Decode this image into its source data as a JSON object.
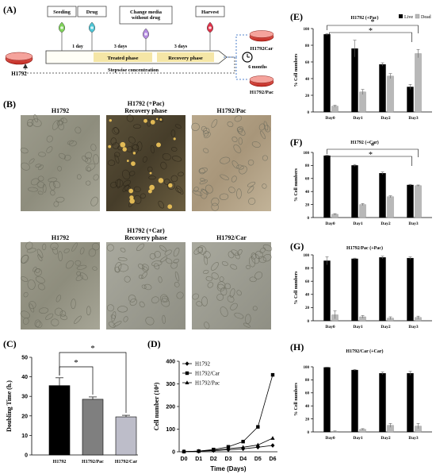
{
  "panel_a": {
    "letter": "(A)",
    "cell_line": "H1792",
    "steps": [
      {
        "label": "Seeding",
        "color": "#7fd35a"
      },
      {
        "label": "Drug",
        "color": "#4ec6d6"
      },
      {
        "label": "Change media\nwithout drug",
        "color": "#b48be0"
      },
      {
        "label": "Harvest",
        "color": "#e0334a"
      }
    ],
    "interval_1": "1 day",
    "interval_2": "3 days",
    "interval_3": "3 days",
    "phase_1": "Treated phase",
    "phase_2": "Recovery phase",
    "stepwise": "Stepwise concentration",
    "duration": "6 months",
    "result_1": "H1792Car",
    "result_2": "H1792/Pac"
  },
  "panel_b": {
    "letter": "(B)",
    "row1": [
      "H1792",
      "H1792 (+Pac)\nRecovery phase",
      "H1792/Pac"
    ],
    "row2": [
      "H1792",
      "H1792 (+Car)\nRecovery phase",
      "H1792/Car"
    ]
  },
  "chart_data": [
    {
      "id": "C",
      "letter": "(C)",
      "type": "bar",
      "categories": [
        "H1792",
        "H1792/Pac",
        "H1792/Car"
      ],
      "values": [
        35.5,
        28.5,
        19.5
      ],
      "errors": [
        4,
        1.2,
        0.8
      ],
      "colors": [
        "#000000",
        "#7f7f7f",
        "#bdbdc9"
      ],
      "ylabel": "Doubling Time (h.)",
      "ylim": [
        0,
        50
      ],
      "yticks": [
        0,
        10,
        20,
        30,
        40,
        50
      ],
      "significance": [
        {
          "pair": [
            0,
            1
          ],
          "label": "*"
        },
        {
          "pair": [
            0,
            2
          ],
          "label": "*"
        }
      ]
    },
    {
      "id": "D",
      "letter": "(D)",
      "type": "line",
      "x": [
        "D0",
        "D1",
        "D2",
        "D3",
        "D4",
        "D5",
        "D6"
      ],
      "series": [
        {
          "name": "H1792",
          "marker": "diamond",
          "values": [
            1,
            2,
            5,
            9,
            13,
            20,
            28
          ]
        },
        {
          "name": "H1792/Car",
          "marker": "square",
          "values": [
            1,
            3,
            10,
            22,
            45,
            110,
            340
          ]
        },
        {
          "name": "H1792/Pac",
          "marker": "triangle",
          "values": [
            1,
            3,
            7,
            14,
            20,
            30,
            60
          ]
        }
      ],
      "ylabel": "Cell number (10⁴)",
      "xlabel": "Time (Days)",
      "ylim": [
        0,
        400
      ],
      "yticks": [
        0,
        100,
        200,
        300,
        400
      ]
    },
    {
      "id": "E",
      "letter": "(E)",
      "type": "bar",
      "title": "H1792 (+Pac)",
      "legend": [
        "Live",
        "Dead"
      ],
      "categories": [
        "Day0",
        "Day1",
        "Day2",
        "Day3"
      ],
      "series": [
        {
          "name": "Live",
          "values": [
            93,
            76,
            57,
            30
          ],
          "errors": [
            1,
            10,
            2,
            3
          ]
        },
        {
          "name": "Dead",
          "values": [
            7,
            24,
            43,
            70
          ],
          "errors": [
            1,
            3,
            3,
            5
          ]
        }
      ],
      "ylabel": "% Cell numbers",
      "ylim": [
        0,
        100
      ],
      "yticks": [
        0,
        20,
        40,
        60,
        80,
        100
      ],
      "significance": [
        {
          "pair": [
            0,
            3
          ],
          "label": "*"
        },
        {
          "pair": [
            0,
            3
          ],
          "label": "*"
        }
      ]
    },
    {
      "id": "F",
      "letter": "(F)",
      "type": "bar",
      "title": "H1792 (+Car)",
      "categories": [
        "Day0",
        "Day1",
        "Day2",
        "Day3"
      ],
      "series": [
        {
          "name": "Live",
          "values": [
            95,
            80,
            68,
            50
          ],
          "errors": [
            1,
            1.5,
            2,
            1
          ]
        },
        {
          "name": "Dead",
          "values": [
            5,
            20,
            32,
            49
          ],
          "errors": [
            1,
            1.5,
            1.5,
            1
          ]
        }
      ],
      "ylabel": "% Cell numbers",
      "ylim": [
        0,
        100
      ],
      "yticks": [
        0,
        20,
        40,
        60,
        80,
        100
      ],
      "significance": [
        {
          "pair": [
            0,
            3
          ],
          "label": "*"
        },
        {
          "pair": [
            0,
            3
          ],
          "label": "*"
        }
      ]
    },
    {
      "id": "G",
      "letter": "(G)",
      "type": "bar",
      "title": "H1792/Pac (+Pac)",
      "categories": [
        "Day0",
        "Day1",
        "Day2",
        "Day3"
      ],
      "series": [
        {
          "name": "Live",
          "values": [
            91,
            94,
            96,
            95
          ],
          "errors": [
            6,
            1,
            2,
            2
          ]
        },
        {
          "name": "Dead",
          "values": [
            9,
            6,
            4,
            5
          ],
          "errors": [
            6,
            2,
            2,
            2
          ]
        }
      ],
      "ylabel": "% Cell numbers",
      "ylim": [
        0,
        100
      ],
      "yticks": [
        0,
        20,
        40,
        60,
        80,
        100
      ]
    },
    {
      "id": "H",
      "letter": "(H)",
      "type": "bar",
      "title": "H1792/Car (+Car)",
      "categories": [
        "Day0",
        "Day1",
        "Day2",
        "Day3"
      ],
      "series": [
        {
          "name": "Live",
          "values": [
            99,
            95,
            90,
            90
          ],
          "errors": [
            0.5,
            1,
            2,
            3
          ]
        },
        {
          "name": "Dead",
          "values": [
            1,
            4,
            10,
            9
          ],
          "errors": [
            0.5,
            1,
            3,
            4
          ]
        }
      ],
      "ylabel": "% Cell numbers",
      "ylim": [
        0,
        100
      ],
      "yticks": [
        0,
        20,
        40,
        60,
        80,
        100
      ]
    }
  ],
  "colors": {
    "live": "#000000",
    "dead": "#b8b8b8",
    "timeline": "#f5e6a6",
    "dish": "#d9302c"
  }
}
